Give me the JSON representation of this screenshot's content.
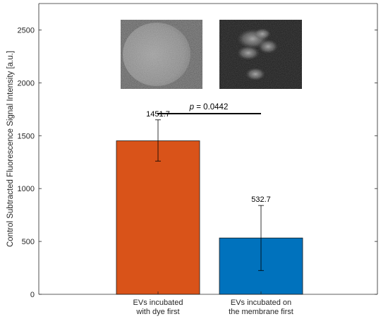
{
  "chart_data": {
    "type": "bar",
    "categories": [
      [
        "EVs incubated",
        "with dye first"
      ],
      [
        "EVs incubated on",
        "the membrane first"
      ]
    ],
    "values": [
      1451.7,
      532.7
    ],
    "value_labels": [
      "1451.7",
      "532.7"
    ],
    "error_low": [
      1260,
      225
    ],
    "error_high": [
      1650,
      840
    ],
    "colors": [
      "#d95319",
      "#0072bd"
    ],
    "title": "",
    "xlabel": "",
    "ylabel": "Control Subtracted Fluorescence Signal Intensity [a.u.]",
    "ylim": [
      0,
      2750
    ],
    "yticks": [
      0,
      500,
      1000,
      1500,
      2000,
      2500
    ],
    "grid": false,
    "annotation": {
      "p_prefix": "p",
      "p_suffix": " = 0.0442"
    },
    "insets": [
      {
        "name": "fluorescence-image-dye-first",
        "style": "bright-disc"
      },
      {
        "name": "fluorescence-image-membrane-first",
        "style": "dim-patches"
      }
    ]
  }
}
